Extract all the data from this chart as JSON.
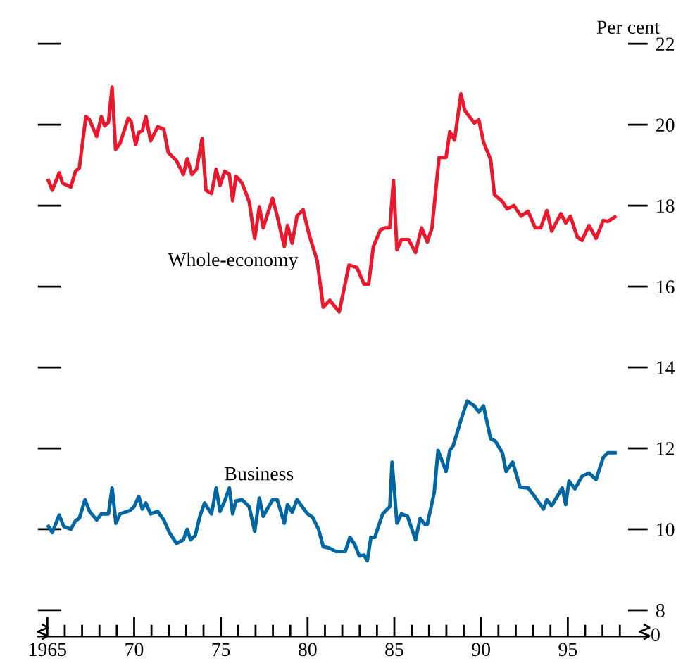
{
  "chart_data": {
    "type": "line",
    "ylabel": "Per cent",
    "x": [
      1965.06,
      1965.28,
      1965.68,
      1965.87,
      1966.35,
      1966.62,
      1966.84,
      1967.22,
      1967.43,
      1967.84,
      1968.11,
      1968.3,
      1968.52,
      1968.73,
      1968.93,
      1969.19,
      1969.66,
      1969.82,
      1970.09,
      1970.27,
      1970.47,
      1970.68,
      1970.95,
      1971.36,
      1971.71,
      1971.97,
      1972.44,
      1972.84,
      1973.06,
      1973.33,
      1973.6,
      1973.92,
      1974.14,
      1974.46,
      1974.73,
      1974.95,
      1975.22,
      1975.49,
      1975.68,
      1975.87,
      1976.22,
      1976.63,
      1976.95,
      1977.22,
      1977.44,
      1977.98,
      1978.25,
      1978.66,
      1978.84,
      1979.11,
      1979.39,
      1979.74,
      1980.09,
      1980.55,
      1980.9,
      1981.28,
      1981.82,
      1982.39,
      1982.84,
      1983.25,
      1983.52,
      1983.79,
      1984.2,
      1984.46,
      1984.74,
      1984.95,
      1985.15,
      1985.41,
      1985.82,
      1986.22,
      1986.57,
      1986.9,
      1987.17,
      1987.58,
      1987.98,
      1988.2,
      1988.47,
      1988.84,
      1989.06,
      1989.61,
      1989.87,
      1990.14,
      1990.55,
      1990.77,
      1991.23,
      1991.5,
      1991.9,
      1992.31,
      1992.71,
      1993.12,
      1993.44,
      1993.79,
      1994.07,
      1994.6,
      1994.88,
      1995.15,
      1995.55,
      1995.82,
      1996.22,
      1996.63,
      1997.04,
      1997.31,
      1997.72
    ],
    "series": [
      {
        "name": "Whole-economy",
        "color": "#e8192c",
        "values": [
          18.62,
          18.38,
          18.81,
          18.56,
          18.46,
          18.85,
          18.93,
          20.2,
          20.12,
          19.71,
          20.2,
          19.97,
          20.06,
          20.93,
          19.39,
          19.54,
          20.16,
          20.09,
          19.51,
          19.81,
          19.85,
          20.2,
          19.6,
          19.95,
          19.89,
          19.31,
          19.11,
          18.77,
          19.16,
          18.77,
          18.9,
          19.66,
          18.38,
          18.3,
          18.9,
          18.5,
          18.85,
          18.77,
          18.12,
          18.73,
          18.56,
          18.1,
          17.19,
          17.97,
          17.45,
          18.18,
          17.74,
          16.99,
          17.51,
          17.07,
          17.74,
          17.9,
          17.28,
          16.64,
          15.49,
          15.66,
          15.37,
          16.53,
          16.47,
          16.06,
          16.06,
          16.99,
          17.4,
          17.45,
          17.45,
          18.62,
          16.91,
          17.16,
          17.16,
          16.84,
          17.45,
          17.1,
          17.45,
          19.19,
          19.19,
          19.83,
          19.62,
          20.76,
          20.35,
          20.04,
          20.12,
          19.57,
          19.14,
          18.27,
          18.1,
          17.92,
          18.0,
          17.74,
          17.86,
          17.45,
          17.45,
          17.88,
          17.37,
          17.8,
          17.57,
          17.74,
          17.22,
          17.14,
          17.51,
          17.19,
          17.63,
          17.61,
          17.72
        ]
      },
      {
        "name": "Business",
        "color": "#0066a1",
        "x": [
          1965.06,
          1965.28,
          1965.68,
          1965.95,
          1966.35,
          1966.62,
          1966.84,
          1967.17,
          1967.43,
          1967.84,
          1968.11,
          1968.52,
          1968.73,
          1968.95,
          1969.19,
          1969.74,
          1970.0,
          1970.27,
          1970.47,
          1970.68,
          1970.95,
          1971.36,
          1971.71,
          1972.03,
          1972.44,
          1972.84,
          1973.06,
          1973.25,
          1973.52,
          1973.79,
          1974.06,
          1974.46,
          1974.73,
          1974.95,
          1975.22,
          1975.49,
          1975.68,
          1975.87,
          1976.22,
          1976.63,
          1976.95,
          1977.22,
          1977.44,
          1977.98,
          1978.25,
          1978.66,
          1978.84,
          1979.11,
          1979.39,
          1980.0,
          1980.28,
          1980.63,
          1980.9,
          1981.28,
          1981.63,
          1982.17,
          1982.44,
          1982.71,
          1982.98,
          1983.25,
          1983.44,
          1983.65,
          1983.87,
          1984.33,
          1984.74,
          1984.87,
          1985.15,
          1985.41,
          1985.76,
          1986.22,
          1986.49,
          1986.77,
          1986.9,
          1987.3,
          1987.52,
          1987.98,
          1988.2,
          1988.39,
          1988.84,
          1989.2,
          1989.61,
          1989.87,
          1990.14,
          1990.55,
          1990.82,
          1991.23,
          1991.44,
          1991.82,
          1992.25,
          1992.71,
          1993.12,
          1993.6,
          1993.79,
          1994.07,
          1994.68,
          1994.88,
          1995.07,
          1995.41,
          1995.82,
          1996.22,
          1996.63,
          1997.04,
          1997.31,
          1997.72
        ],
        "values": [
          10.07,
          9.92,
          10.35,
          10.07,
          10.0,
          10.21,
          10.27,
          10.73,
          10.44,
          10.23,
          10.38,
          10.38,
          11.02,
          10.15,
          10.38,
          10.46,
          10.56,
          10.81,
          10.5,
          10.65,
          10.38,
          10.44,
          10.23,
          9.92,
          9.65,
          9.74,
          10.0,
          9.74,
          9.84,
          10.32,
          10.65,
          10.38,
          11.02,
          10.44,
          10.7,
          11.02,
          10.38,
          10.7,
          10.73,
          10.56,
          9.95,
          10.77,
          10.32,
          10.73,
          10.73,
          10.15,
          10.61,
          10.42,
          10.73,
          10.38,
          10.3,
          10.0,
          9.57,
          9.53,
          9.45,
          9.45,
          9.8,
          9.63,
          9.34,
          9.36,
          9.22,
          9.8,
          9.8,
          10.38,
          10.56,
          11.66,
          10.15,
          10.38,
          10.32,
          9.74,
          10.27,
          10.12,
          10.12,
          10.91,
          11.95,
          11.43,
          11.95,
          12.06,
          12.7,
          13.17,
          13.05,
          12.9,
          13.05,
          12.24,
          12.18,
          11.89,
          11.43,
          11.66,
          11.04,
          11.02,
          10.79,
          10.5,
          10.73,
          10.58,
          11.02,
          10.61,
          11.19,
          11.0,
          11.31,
          11.39,
          11.23,
          11.77,
          11.89,
          11.89
        ]
      }
    ],
    "xlim": [
      1964.45,
      1999.6
    ],
    "xticks": [
      1965,
      {
        "value": 1966,
        "label": null
      },
      {
        "value": 1967,
        "label": null
      },
      {
        "value": 1968,
        "label": null
      },
      {
        "value": 1969,
        "label": null
      },
      {
        "value": 1970,
        "label": "70"
      },
      {
        "value": 1971,
        "label": null
      },
      {
        "value": 1972,
        "label": null
      },
      {
        "value": 1973,
        "label": null
      },
      {
        "value": 1974,
        "label": null
      },
      {
        "value": 1975,
        "label": "75"
      },
      {
        "value": 1976,
        "label": null
      },
      {
        "value": 1977,
        "label": null
      },
      {
        "value": 1978,
        "label": null
      },
      {
        "value": 1979,
        "label": null
      },
      {
        "value": 1980,
        "label": "80"
      },
      {
        "value": 1981,
        "label": null
      },
      {
        "value": 1982,
        "label": null
      },
      {
        "value": 1983,
        "label": null
      },
      {
        "value": 1984,
        "label": null
      },
      {
        "value": 1985,
        "label": "85"
      },
      {
        "value": 1986,
        "label": null
      },
      {
        "value": 1987,
        "label": null
      },
      {
        "value": 1988,
        "label": null
      },
      {
        "value": 1989,
        "label": null
      },
      {
        "value": 1990,
        "label": "90"
      },
      {
        "value": 1991,
        "label": null
      },
      {
        "value": 1992,
        "label": null
      },
      {
        "value": 1993,
        "label": null
      },
      {
        "value": 1994,
        "label": null
      },
      {
        "value": 1995,
        "label": "95"
      },
      {
        "value": 1996,
        "label": null
      },
      {
        "value": 1997,
        "label": null
      },
      {
        "value": 1998,
        "label": null
      }
    ],
    "ylim": [
      7.35,
      22
    ],
    "yticks": [
      8,
      10,
      12,
      14,
      16,
      18,
      20,
      22
    ],
    "annotations": [
      "0"
    ],
    "grid": false,
    "legend": false,
    "marker": "none",
    "line_style": "solid"
  }
}
